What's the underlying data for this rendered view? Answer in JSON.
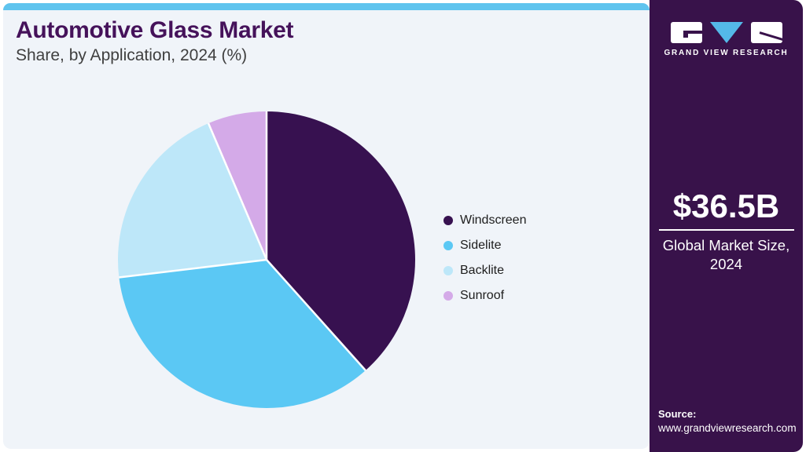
{
  "header": {
    "title": "Automotive Glass Market",
    "subtitle": "Share, by Application, 2024 (%)"
  },
  "chart_data": {
    "type": "pie",
    "title": "Automotive Glass Market Share, by Application, 2024 (%)",
    "categories": [
      "Windscreen",
      "Sidelite",
      "Backlite",
      "Sunroof"
    ],
    "values": [
      38.4,
      34.7,
      20.5,
      6.4
    ],
    "unit": "%",
    "colors": [
      "#371150",
      "#5bc8f4",
      "#bde7f9",
      "#d4aae8"
    ],
    "start_angle": "top",
    "direction": "clockwise",
    "legend_position": "right",
    "slice_border_color": "#ffffff"
  },
  "sidebar": {
    "logo": {
      "brand": "GRAND VIEW RESEARCH"
    },
    "market_size": {
      "value": "$36.5B",
      "label": "Global Market Size, 2024"
    },
    "source": {
      "label": "Source:",
      "url": "www.grandviewresearch.com"
    }
  },
  "colors": {
    "top_strip": "#5fc4ee",
    "panel_bg": "#f0f4f9",
    "sidebar_bg": "#38124a",
    "title_text": "#45125a",
    "subtitle_text": "#3f3f3f",
    "legend_text": "#1e1e1e",
    "logo_triangle": "#54b9e8",
    "white": "#ffffff"
  }
}
